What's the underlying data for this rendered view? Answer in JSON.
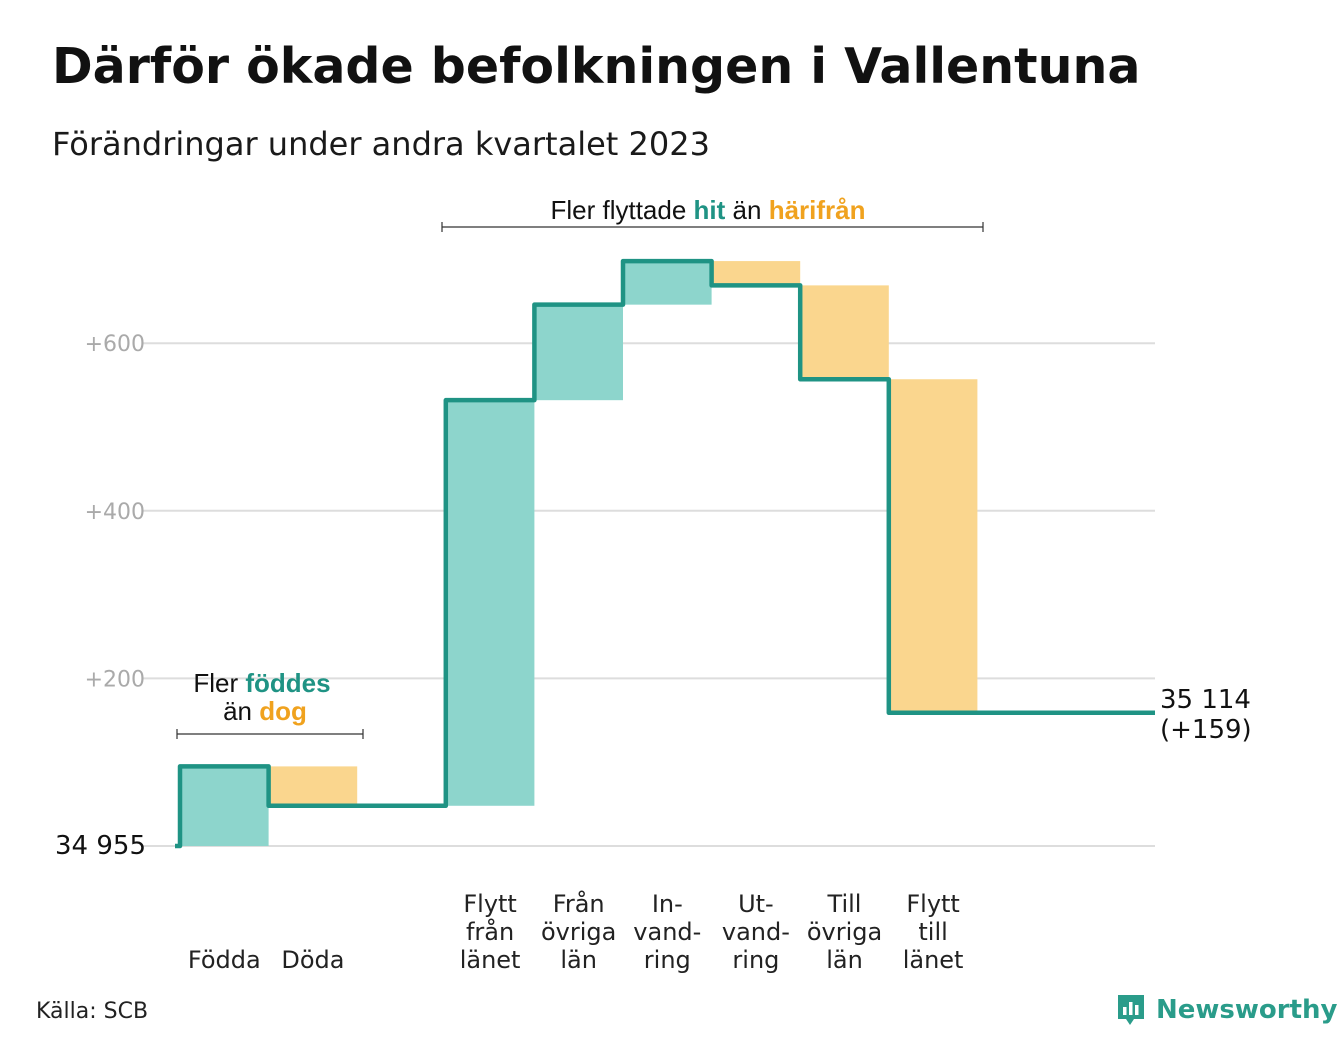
{
  "title": "Därför ökade befolkningen i Vallentuna",
  "subtitle": "Förändringar under andra kvartalet 2023",
  "source": "Källa: SCB",
  "brand": "Newsworthy",
  "colors": {
    "increase": "#8dd5cc",
    "decrease": "#fad68e",
    "line": "#1f9384",
    "accent_hit": "#1f9384",
    "accent_away": "#f0a21e",
    "grid": "#dddddd"
  },
  "annotations": {
    "births": {
      "prefix": "Fler",
      "highlight1": "föddes",
      "middle": "än",
      "highlight2": "dog"
    },
    "moves": {
      "prefix": "Fler flyttade",
      "highlight1": "hit",
      "middle": "än",
      "highlight2": "härifrån"
    }
  },
  "end_label": {
    "line1": "35 114",
    "line2": "(+159)"
  },
  "start_label": "34  955",
  "chart_data": {
    "type": "waterfall",
    "title": "Därför ökade befolkningen i Vallentuna",
    "subtitle": "Förändringar under andra kvartalet 2023",
    "start_value": 34955,
    "end_value": 35114,
    "net_change": 159,
    "ylim": [
      0,
      700
    ],
    "yticks": [
      {
        "value": 0,
        "label": "34  955"
      },
      {
        "value": 200,
        "label": "+200"
      },
      {
        "value": 400,
        "label": "+400"
      },
      {
        "value": 600,
        "label": "+600"
      }
    ],
    "steps": [
      {
        "label": [
          "Födda"
        ],
        "change": 95,
        "kind": "increase"
      },
      {
        "label": [
          "Döda"
        ],
        "change": -47,
        "kind": "decrease"
      },
      {
        "label": [
          ""
        ],
        "change": 0,
        "kind": "gap"
      },
      {
        "label": [
          "Flytt",
          "från",
          "länet"
        ],
        "change": 484,
        "kind": "increase"
      },
      {
        "label": [
          "Från",
          "övriga",
          "län"
        ],
        "change": 114,
        "kind": "increase"
      },
      {
        "label": [
          "In-",
          "vand-",
          "ring"
        ],
        "change": 52,
        "kind": "increase"
      },
      {
        "label": [
          "Ut-",
          "vand-",
          "ring"
        ],
        "change": -29,
        "kind": "decrease"
      },
      {
        "label": [
          "Till",
          "övriga",
          "län"
        ],
        "change": -112,
        "kind": "decrease"
      },
      {
        "label": [
          "Flytt",
          "till",
          "länet"
        ],
        "change": -398,
        "kind": "decrease"
      }
    ],
    "grid": true,
    "legend": "none"
  }
}
